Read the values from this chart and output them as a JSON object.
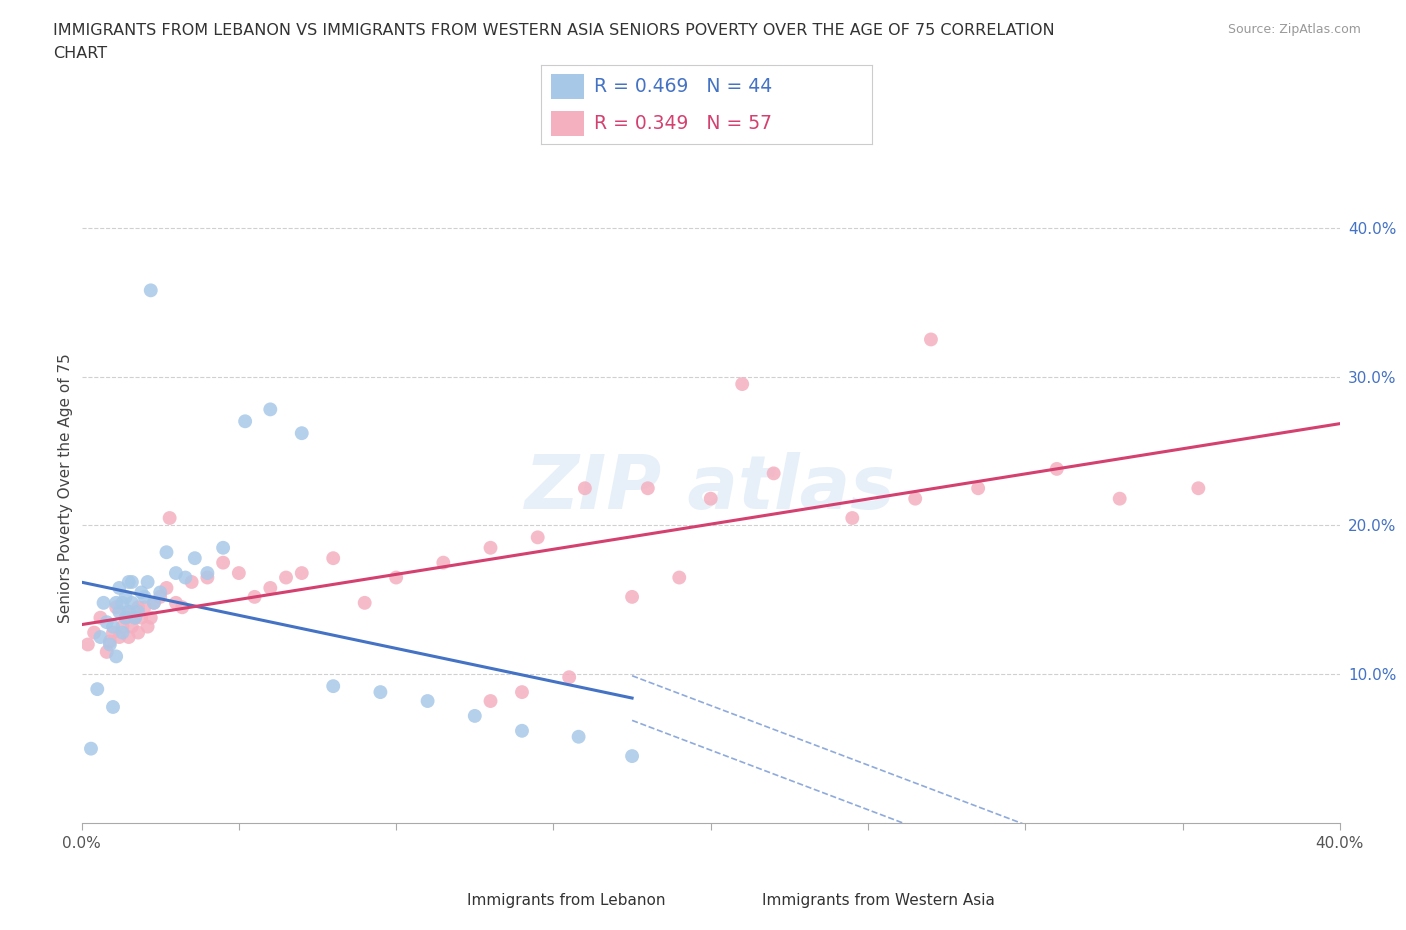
{
  "title_line1": "IMMIGRANTS FROM LEBANON VS IMMIGRANTS FROM WESTERN ASIA SENIORS POVERTY OVER THE AGE OF 75 CORRELATION",
  "title_line2": "CHART",
  "source_text": "Source: ZipAtlas.com",
  "ylabel": "Seniors Poverty Over the Age of 75",
  "xlim": [
    0.0,
    0.4
  ],
  "ylim": [
    0.0,
    0.45
  ],
  "legend_r1": "0.469",
  "legend_n1": "44",
  "legend_r2": "0.349",
  "legend_n2": "57",
  "color_lebanon": "#a8c8e8",
  "color_western_asia": "#f5b0c0",
  "color_line_lebanon": "#4472c4",
  "color_line_western_asia": "#d44070",
  "label_lebanon": "Immigrants from Lebanon",
  "label_western_asia": "Immigrants from Western Asia",
  "lebanon_x": [
    0.003,
    0.005,
    0.006,
    0.007,
    0.008,
    0.009,
    0.01,
    0.01,
    0.011,
    0.011,
    0.012,
    0.012,
    0.013,
    0.013,
    0.014,
    0.014,
    0.015,
    0.015,
    0.016,
    0.016,
    0.017,
    0.018,
    0.019,
    0.02,
    0.021,
    0.022,
    0.023,
    0.025,
    0.027,
    0.03,
    0.033,
    0.036,
    0.04,
    0.045,
    0.052,
    0.06,
    0.07,
    0.08,
    0.095,
    0.11,
    0.125,
    0.14,
    0.158,
    0.175
  ],
  "lebanon_y": [
    0.05,
    0.09,
    0.125,
    0.148,
    0.135,
    0.12,
    0.078,
    0.132,
    0.148,
    0.112,
    0.142,
    0.158,
    0.128,
    0.148,
    0.138,
    0.152,
    0.142,
    0.162,
    0.148,
    0.162,
    0.138,
    0.142,
    0.155,
    0.152,
    0.162,
    0.358,
    0.148,
    0.155,
    0.182,
    0.168,
    0.165,
    0.178,
    0.168,
    0.185,
    0.27,
    0.278,
    0.262,
    0.092,
    0.088,
    0.082,
    0.072,
    0.062,
    0.058,
    0.045
  ],
  "western_asia_x": [
    0.002,
    0.004,
    0.006,
    0.008,
    0.009,
    0.01,
    0.011,
    0.012,
    0.013,
    0.014,
    0.015,
    0.015,
    0.016,
    0.017,
    0.018,
    0.018,
    0.019,
    0.02,
    0.021,
    0.022,
    0.023,
    0.025,
    0.027,
    0.028,
    0.03,
    0.032,
    0.035,
    0.04,
    0.045,
    0.05,
    0.055,
    0.06,
    0.065,
    0.07,
    0.08,
    0.09,
    0.1,
    0.115,
    0.13,
    0.145,
    0.16,
    0.18,
    0.2,
    0.22,
    0.245,
    0.265,
    0.285,
    0.31,
    0.33,
    0.355,
    0.27,
    0.21,
    0.19,
    0.175,
    0.155,
    0.14,
    0.13
  ],
  "western_asia_y": [
    0.12,
    0.128,
    0.138,
    0.115,
    0.122,
    0.128,
    0.145,
    0.125,
    0.132,
    0.138,
    0.142,
    0.125,
    0.132,
    0.138,
    0.128,
    0.145,
    0.138,
    0.145,
    0.132,
    0.138,
    0.148,
    0.152,
    0.158,
    0.205,
    0.148,
    0.145,
    0.162,
    0.165,
    0.175,
    0.168,
    0.152,
    0.158,
    0.165,
    0.168,
    0.178,
    0.148,
    0.165,
    0.175,
    0.185,
    0.192,
    0.225,
    0.225,
    0.218,
    0.235,
    0.205,
    0.218,
    0.225,
    0.238,
    0.218,
    0.225,
    0.325,
    0.295,
    0.165,
    0.152,
    0.098,
    0.088,
    0.082
  ]
}
